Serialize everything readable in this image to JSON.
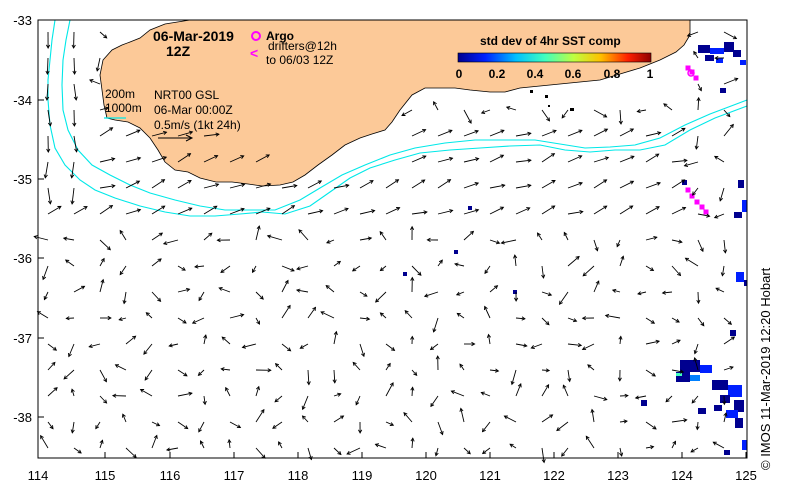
{
  "title": {
    "date": "06-Mar-2019",
    "hour": "12Z"
  },
  "legend": {
    "argo_label": "Argo",
    "drifters_line1": "drifters@12h",
    "drifters_line2": "to 06/03 12Z",
    "isobath_200": "200m",
    "isobath_1000": "1000m"
  },
  "product_info": {
    "line1": "NRT00 GSL",
    "line2": "06-Mar 00:00Z",
    "line3": "0.5m/s (1kt 24h)"
  },
  "colorbar": {
    "title": "std dev of 4hr SST comp",
    "ticks": [
      "0",
      "0.2",
      "0.4",
      "0.6",
      "0.8",
      "1"
    ],
    "colors": [
      "#00008f",
      "#0020ff",
      "#00c0ff",
      "#40ffbf",
      "#bfff40",
      "#ffc000",
      "#ff2000",
      "#8f0000"
    ]
  },
  "axes": {
    "x_ticks": [
      "114",
      "115",
      "116",
      "117",
      "118",
      "119",
      "120",
      "121",
      "122",
      "123",
      "124",
      "125"
    ],
    "y_ticks": [
      "-33",
      "-34",
      "-35",
      "-36",
      "-37",
      "-38"
    ]
  },
  "credit": "©  IMOS 11-Mar-2019 12:20 Hobart",
  "colors": {
    "land": "#fcc998",
    "isobath": "#00e8e8",
    "argo": "#ff00ff",
    "drifter": "#ff00ff"
  }
}
